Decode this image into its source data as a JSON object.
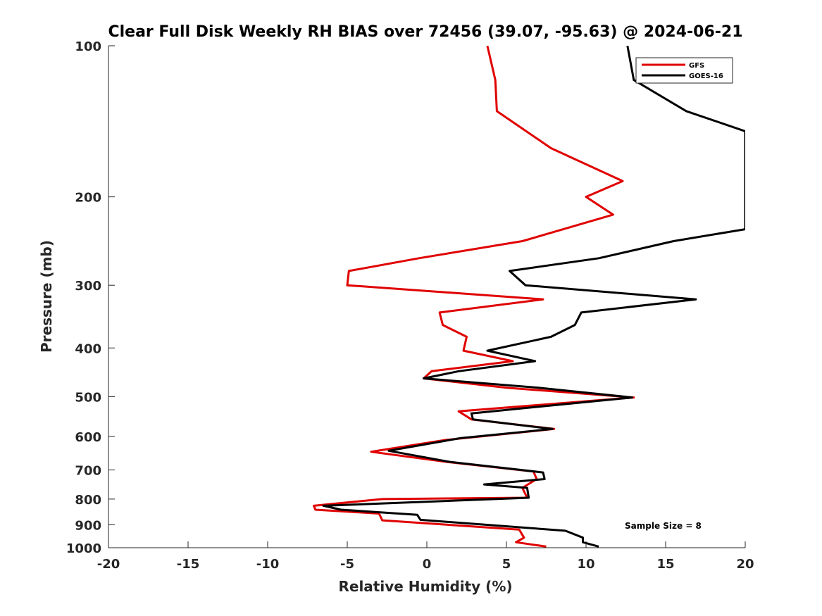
{
  "chart_data": {
    "type": "line",
    "title": "Clear Full Disk Weekly RH BIAS over 72456 (39.07, -95.63) @ 2024-06-21",
    "xlabel": "Relative Humidity (%)",
    "ylabel": "Pressure (mb)",
    "xlim": [
      -20,
      20
    ],
    "ylim": [
      100,
      1000
    ],
    "y_scale": "log",
    "y_reversed": true,
    "xticks": [
      "-20",
      "-15",
      "-10",
      "-5",
      "0",
      "5",
      "10",
      "15",
      "20"
    ],
    "yticks": [
      "100",
      "200",
      "300",
      "400",
      "500",
      "600",
      "700",
      "800",
      "900",
      "1000"
    ],
    "grid": false,
    "legend_position": "top-right",
    "annotation": "Sample Size = 8",
    "series": [
      {
        "name": "GFS",
        "color": "#e00000",
        "points": [
          [
            3.8,
            100
          ],
          [
            4.3,
            117
          ],
          [
            4.4,
            135
          ],
          [
            7.8,
            160
          ],
          [
            12.3,
            186
          ],
          [
            10.0,
            200
          ],
          [
            11.7,
            217
          ],
          [
            6.0,
            245
          ],
          [
            -0.5,
            265
          ],
          [
            -4.9,
            281
          ],
          [
            -5.0,
            300
          ],
          [
            7.3,
            320
          ],
          [
            0.8,
            340
          ],
          [
            1.0,
            360
          ],
          [
            2.5,
            380
          ],
          [
            2.3,
            405
          ],
          [
            5.4,
            425
          ],
          [
            0.3,
            445
          ],
          [
            -0.2,
            460
          ],
          [
            5.0,
            480
          ],
          [
            13.0,
            502
          ],
          [
            2.0,
            535
          ],
          [
            2.8,
            555
          ],
          [
            8.0,
            580
          ],
          [
            1.2,
            610
          ],
          [
            -3.5,
            644
          ],
          [
            1.3,
            675
          ],
          [
            6.7,
            705
          ],
          [
            6.9,
            730
          ],
          [
            6.0,
            760
          ],
          [
            6.3,
            795
          ],
          [
            -2.8,
            800
          ],
          [
            -7.1,
            825
          ],
          [
            -7.0,
            840
          ],
          [
            -3.0,
            855
          ],
          [
            -2.8,
            882
          ],
          [
            5.8,
            920
          ],
          [
            6.1,
            955
          ],
          [
            5.6,
            975
          ],
          [
            7.5,
            995
          ]
        ]
      },
      {
        "name": "GOES-16",
        "color": "#000000",
        "points": [
          [
            12.6,
            100
          ],
          [
            13.0,
            117
          ],
          [
            16.3,
            135
          ],
          [
            20.0,
            148
          ],
          [
            20.0,
            232
          ],
          [
            15.5,
            245
          ],
          [
            10.8,
            265
          ],
          [
            5.2,
            281
          ],
          [
            6.2,
            300
          ],
          [
            16.9,
            320
          ],
          [
            9.7,
            340
          ],
          [
            9.3,
            360
          ],
          [
            7.8,
            380
          ],
          [
            3.8,
            405
          ],
          [
            6.8,
            425
          ],
          [
            2.0,
            445
          ],
          [
            -0.2,
            460
          ],
          [
            7.0,
            480
          ],
          [
            12.9,
            502
          ],
          [
            2.8,
            540
          ],
          [
            2.9,
            555
          ],
          [
            7.9,
            580
          ],
          [
            2.1,
            605
          ],
          [
            -2.4,
            641
          ],
          [
            1.5,
            675
          ],
          [
            7.3,
            708
          ],
          [
            7.4,
            730
          ],
          [
            3.6,
            748
          ],
          [
            6.3,
            760
          ],
          [
            6.4,
            795
          ],
          [
            -6.5,
            825
          ],
          [
            -5.4,
            840
          ],
          [
            -0.6,
            860
          ],
          [
            -0.4,
            880
          ],
          [
            8.7,
            925
          ],
          [
            9.8,
            955
          ],
          [
            9.8,
            975
          ],
          [
            10.8,
            995
          ]
        ]
      }
    ]
  }
}
